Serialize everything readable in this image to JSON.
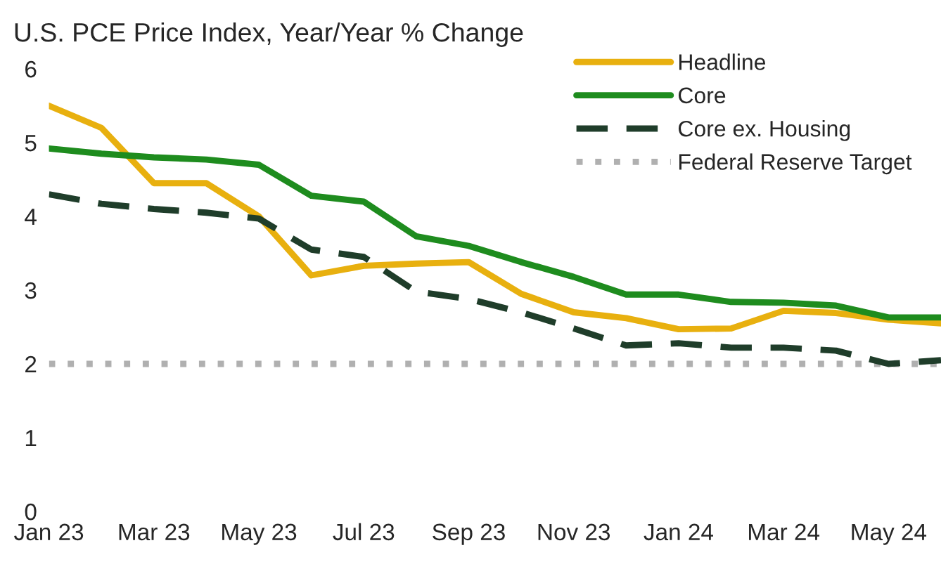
{
  "chart_data": {
    "type": "line",
    "title": "U.S. PCE Price Index, Year/Year % Change",
    "categories": [
      "Jan 23",
      null,
      "Mar 23",
      null,
      "May 23",
      null,
      "Jul 23",
      null,
      "Sep 23",
      null,
      "Nov 23",
      null,
      "Jan 24",
      null,
      "Mar 24",
      null,
      "May 24",
      null
    ],
    "series": [
      {
        "name": "Headline",
        "color": "#e8b00f",
        "line_style": "solid",
        "values": [
          5.5,
          5.2,
          4.45,
          4.45,
          4.0,
          3.2,
          3.33,
          3.36,
          3.38,
          2.95,
          2.7,
          2.62,
          2.47,
          2.48,
          2.72,
          2.69,
          2.6,
          2.55
        ]
      },
      {
        "name": "Core",
        "color": "#1e8c1e",
        "line_style": "solid",
        "values": [
          4.92,
          4.85,
          4.8,
          4.77,
          4.7,
          4.28,
          4.2,
          3.73,
          3.6,
          3.38,
          3.18,
          2.94,
          2.94,
          2.84,
          2.83,
          2.79,
          2.63,
          2.63
        ]
      },
      {
        "name": "Core ex. Housing",
        "color": "#1f3d2a",
        "line_style": "dashed",
        "values": [
          4.3,
          4.17,
          4.1,
          4.05,
          3.97,
          3.55,
          3.45,
          2.98,
          2.88,
          2.7,
          2.48,
          2.25,
          2.28,
          2.22,
          2.22,
          2.18,
          2.0,
          2.05
        ]
      }
    ],
    "ref_lines": [
      {
        "axis": "y",
        "value": 2,
        "label": "Federal Reserve Target",
        "color": "#b0b0b0",
        "line_style": "dotted"
      }
    ],
    "ylim": [
      0,
      6
    ],
    "yticks": [
      0,
      1,
      2,
      3,
      4,
      5,
      6
    ],
    "grid": false,
    "legend": "top right",
    "marker": "none"
  }
}
